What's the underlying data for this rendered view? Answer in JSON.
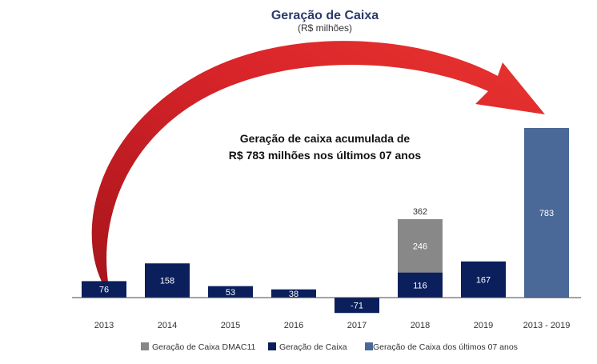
{
  "chart_data": {
    "type": "bar",
    "title": "Geração de Caixa",
    "subtitle": "(R$ milhões)",
    "categories": [
      "2013",
      "2014",
      "2015",
      "2016",
      "2017",
      "2018",
      "2019",
      "2013 - 2019"
    ],
    "series": [
      {
        "name": "Geração de Caixa",
        "color": "#0a1f5c",
        "values": [
          76,
          158,
          53,
          38,
          -71,
          116,
          167,
          null
        ],
        "labels": [
          "76",
          "158",
          "53",
          "38",
          "-71",
          "116",
          "167",
          ""
        ]
      },
      {
        "name": "Geração de Caixa DMAC11",
        "color": "#888888",
        "values": [
          null,
          null,
          null,
          null,
          null,
          246,
          null,
          null
        ],
        "labels": [
          "",
          "",
          "",
          "",
          "",
          "246",
          "",
          ""
        ]
      },
      {
        "name": "Geração de Caixa dos últimos 07 anos",
        "color": "#4a6898",
        "values": [
          null,
          null,
          null,
          null,
          null,
          null,
          null,
          783
        ],
        "labels": [
          "",
          "",
          "",
          "",
          "",
          "",
          "",
          "783"
        ]
      }
    ],
    "stacked": true,
    "totals": [
      {
        "category": "2018",
        "label": "362"
      }
    ],
    "annotation": {
      "line1": "Geração de caixa acumulada de",
      "line2": "R$ 783 milhões nos últimos 07 anos",
      "arrow_from": "2013",
      "arrow_to": "2013 - 2019",
      "arrow_color": "#d9252a"
    },
    "legend": {
      "placement": "bottom",
      "order": [
        "Geração de Caixa DMAC11",
        "Geração de Caixa",
        "Geração de Caixa dos últimos 07 anos"
      ]
    },
    "ylim": [
      -71,
      783
    ],
    "grid": false,
    "xlabel": "",
    "ylabel": ""
  }
}
